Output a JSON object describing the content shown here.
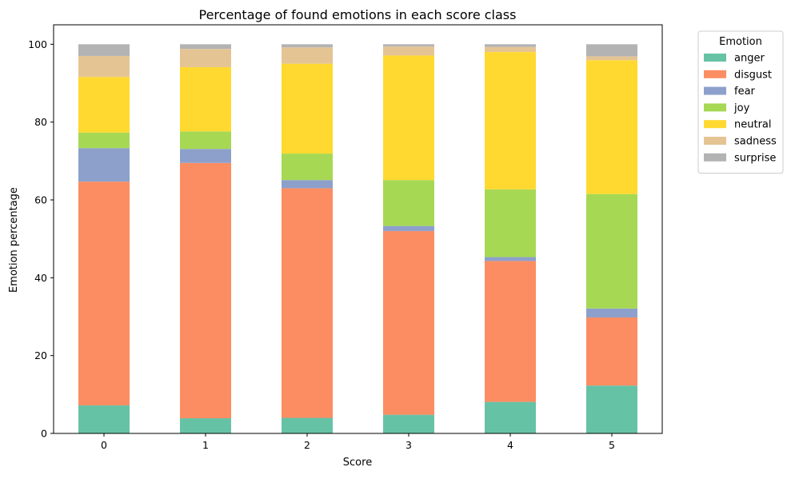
{
  "chart_data": {
    "type": "bar",
    "stacked": true,
    "title": "Percentage of found emotions in each score class",
    "xlabel": "Score",
    "ylabel": "Emotion percentage",
    "categories": [
      "0",
      "1",
      "2",
      "3",
      "4",
      "5"
    ],
    "ylim": [
      0,
      105
    ],
    "yticks": [
      "0",
      "20",
      "40",
      "60",
      "80",
      "100"
    ],
    "legend": {
      "title": "Emotion",
      "position": "outside-upper-right"
    },
    "grid": false,
    "series": [
      {
        "name": "anger",
        "color": "#66c2a5",
        "values": [
          7.2,
          3.9,
          4.0,
          4.8,
          8.1,
          12.3
        ]
      },
      {
        "name": "disgust",
        "color": "#fc8d62",
        "values": [
          57.5,
          65.6,
          59.0,
          47.2,
          36.2,
          17.5
        ]
      },
      {
        "name": "fear",
        "color": "#8da0cb",
        "values": [
          8.6,
          3.6,
          2.1,
          1.3,
          1.0,
          2.3
        ]
      },
      {
        "name": "joy",
        "color": "#a6d854",
        "values": [
          4.0,
          4.5,
          6.8,
          11.8,
          17.4,
          29.4
        ]
      },
      {
        "name": "neutral",
        "color": "#ffd92f",
        "values": [
          14.3,
          16.5,
          23.1,
          32.0,
          35.3,
          34.4
        ]
      },
      {
        "name": "sadness",
        "color": "#e5c494",
        "values": [
          5.4,
          4.7,
          4.2,
          2.3,
          1.3,
          1.0
        ]
      },
      {
        "name": "surprise",
        "color": "#b3b3b3",
        "values": [
          3.0,
          1.2,
          0.8,
          0.6,
          0.7,
          3.1
        ]
      }
    ]
  }
}
